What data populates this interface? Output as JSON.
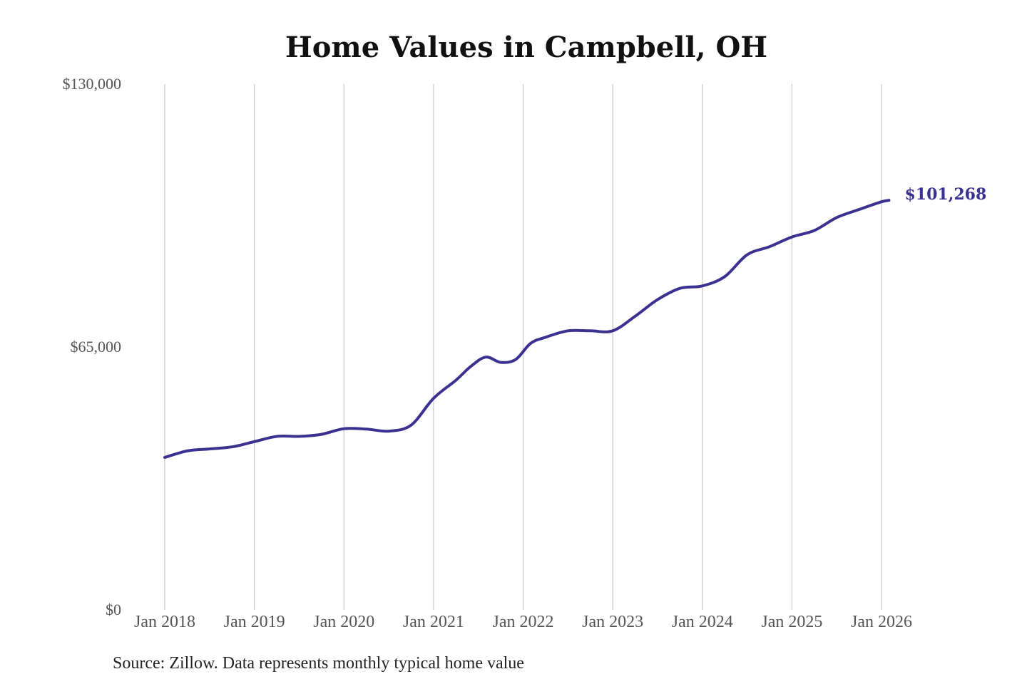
{
  "chart_data": {
    "type": "line",
    "title": "Home Values in Campbell, OH",
    "xlabel": "",
    "ylabel": "",
    "ylim": [
      0,
      130000
    ],
    "xlim": [
      "2018-01",
      "2026-01"
    ],
    "y_ticks": [
      "$130,000",
      "$65,000",
      "$0"
    ],
    "y_tick_values": [
      130000,
      65000,
      0
    ],
    "x_ticks": [
      "Jan 2018",
      "Jan 2019",
      "Jan 2020",
      "Jan 2021",
      "Jan 2022",
      "Jan 2023",
      "Jan 2024",
      "Jan 2025",
      "Jan 2026"
    ],
    "grid": "vertical",
    "line_color": "#3b3191",
    "end_label": "$101,268",
    "source": "Source: Zillow. Data represents monthly typical home value",
    "series": [
      {
        "x": [
          "2018-01",
          "2018-04",
          "2018-07",
          "2018-10",
          "2019-01",
          "2019-04",
          "2019-07",
          "2019-10",
          "2020-01",
          "2020-04",
          "2020-07",
          "2020-10",
          "2021-01",
          "2021-04",
          "2021-06",
          "2021-08",
          "2021-10",
          "2021-12",
          "2022-02",
          "2022-04",
          "2022-07",
          "2022-10",
          "2023-01",
          "2023-04",
          "2023-07",
          "2023-10",
          "2024-01",
          "2024-04",
          "2024-07",
          "2024-10",
          "2025-01",
          "2025-04",
          "2025-07",
          "2025-10",
          "2026-01",
          "2026-02"
        ],
        "values": [
          37700,
          39300,
          39800,
          40300,
          41600,
          42900,
          42900,
          43400,
          44800,
          44700,
          44200,
          45700,
          52300,
          56800,
          60200,
          62500,
          61200,
          61900,
          65900,
          67400,
          69000,
          69000,
          69000,
          72600,
          76700,
          79500,
          80100,
          82400,
          87800,
          89800,
          92200,
          93800,
          97000,
          99000,
          100900,
          101268
        ]
      }
    ]
  }
}
